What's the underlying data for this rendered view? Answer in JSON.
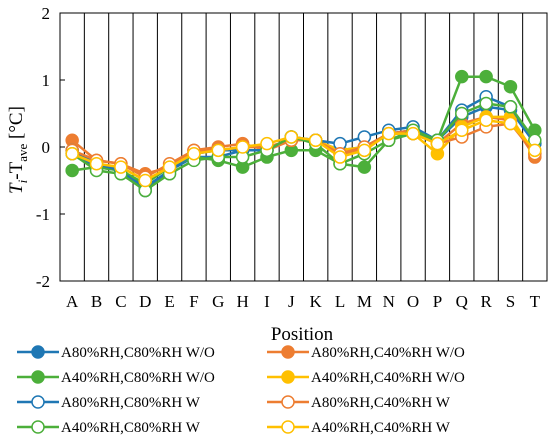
{
  "chart_data": {
    "type": "line",
    "xlabel": "Position",
    "ylabel_main": "T",
    "ylabel_sub_i": "i",
    "ylabel_mid": "-T",
    "ylabel_sub_ave": "ave",
    "ylabel_unit": " [°C]",
    "ylim": [
      -2,
      2
    ],
    "yticks": [
      2,
      1,
      0,
      -1,
      -2
    ],
    "grid": "vertical-at-categories",
    "legend_position": "bottom",
    "categories": [
      "A",
      "B",
      "C",
      "D",
      "E",
      "F",
      "G",
      "H",
      "I",
      "J",
      "K",
      "L",
      "M",
      "N",
      "O",
      "P",
      "Q",
      "R",
      "S",
      "T"
    ],
    "series": [
      {
        "name": "A80%RH,C80%RH W/O",
        "color": "#1f77b4",
        "filled": true,
        "values": [
          -0.1,
          -0.3,
          -0.35,
          -0.6,
          -0.35,
          -0.15,
          -0.15,
          -0.05,
          -0.05,
          0.15,
          0.1,
          -0.05,
          0.0,
          0.2,
          0.25,
          0.1,
          0.45,
          0.6,
          0.55,
          0.05
        ]
      },
      {
        "name": "A80%RH,C40%RH W/O",
        "color": "#ed7d31",
        "filled": true,
        "values": [
          0.1,
          -0.2,
          -0.25,
          -0.4,
          -0.3,
          -0.05,
          0.0,
          0.05,
          -0.05,
          0.1,
          0.1,
          -0.1,
          -0.05,
          0.2,
          0.25,
          0.05,
          0.35,
          0.45,
          0.4,
          -0.15
        ]
      },
      {
        "name": "A40%RH,C80%RH W/O",
        "color": "#4caf3a",
        "filled": true,
        "values": [
          -0.35,
          -0.3,
          -0.35,
          -0.55,
          -0.3,
          -0.15,
          -0.2,
          -0.3,
          -0.15,
          -0.05,
          -0.05,
          -0.25,
          -0.3,
          0.1,
          0.2,
          0.1,
          1.05,
          1.05,
          0.9,
          0.25
        ]
      },
      {
        "name": "A40%RH,C40%RH W/O",
        "color": "#ffc000",
        "filled": true,
        "values": [
          -0.05,
          -0.25,
          -0.3,
          -0.5,
          -0.3,
          -0.1,
          -0.05,
          0.0,
          0.0,
          0.1,
          0.1,
          -0.05,
          0.0,
          0.2,
          0.2,
          -0.1,
          0.3,
          0.45,
          0.45,
          -0.1
        ]
      },
      {
        "name": "A80%RH,C80%RH W",
        "color": "#1f77b4",
        "filled": false,
        "values": [
          -0.05,
          -0.25,
          -0.35,
          -0.65,
          -0.35,
          -0.1,
          -0.05,
          -0.05,
          -0.05,
          0.15,
          0.1,
          0.05,
          0.15,
          0.25,
          0.3,
          0.1,
          0.55,
          0.75,
          0.6,
          0.05
        ]
      },
      {
        "name": "A80%RH,C40%RH W",
        "color": "#ed7d31",
        "filled": false,
        "values": [
          -0.05,
          -0.2,
          -0.25,
          -0.45,
          -0.25,
          -0.05,
          -0.05,
          0.0,
          0.0,
          0.1,
          0.1,
          -0.1,
          0.0,
          0.2,
          0.2,
          0.05,
          0.15,
          0.3,
          0.35,
          -0.1
        ]
      },
      {
        "name": "A40%RH,C80%RH W",
        "color": "#4caf3a",
        "filled": false,
        "values": [
          -0.1,
          -0.35,
          -0.4,
          -0.65,
          -0.4,
          -0.2,
          -0.15,
          -0.15,
          -0.05,
          0.15,
          0.05,
          -0.25,
          -0.1,
          0.1,
          0.25,
          0.1,
          0.5,
          0.65,
          0.6,
          0.1
        ]
      },
      {
        "name": "A40%RH,C40%RH W",
        "color": "#ffc000",
        "filled": false,
        "values": [
          -0.1,
          -0.25,
          -0.3,
          -0.5,
          -0.3,
          -0.1,
          -0.05,
          0.0,
          0.05,
          0.15,
          0.1,
          -0.15,
          -0.05,
          0.2,
          0.2,
          0.05,
          0.25,
          0.4,
          0.35,
          -0.05
        ]
      }
    ]
  }
}
